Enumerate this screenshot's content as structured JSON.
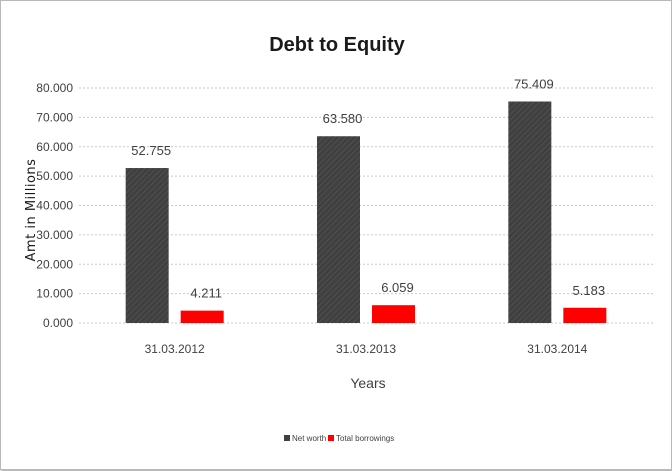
{
  "chart_data": {
    "type": "bar",
    "title": "Debt to Equity",
    "xlabel": "Years",
    "ylabel": "Amt in Millions",
    "categories": [
      "31.03.2012",
      "31.03.2013",
      "31.03.2014"
    ],
    "series": [
      {
        "name": "Net worth",
        "values": [
          52.755,
          63.58,
          75.409
        ],
        "labels": [
          "52.755",
          "63.580",
          "75.409"
        ],
        "color": "#404040"
      },
      {
        "name": "Total borrowings",
        "values": [
          4.211,
          6.059,
          5.183
        ],
        "labels": [
          "4.211",
          "6.059",
          "5.183"
        ],
        "color": "#ff0000"
      }
    ],
    "ylim": [
      0,
      80
    ],
    "yticks": [
      0,
      10,
      20,
      30,
      40,
      50,
      60,
      70,
      80
    ],
    "ytick_labels": [
      "0.000",
      "10.000",
      "20.000",
      "30.000",
      "40.000",
      "50.000",
      "60.000",
      "70.000",
      "80.000"
    ],
    "grid": "horizontal-dashed",
    "legend_position": "bottom"
  }
}
